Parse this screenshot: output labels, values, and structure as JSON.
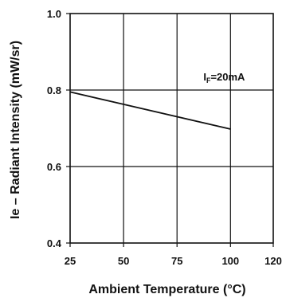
{
  "chart_data": {
    "type": "line",
    "title": "",
    "xlabel": "Ambient Temperature (°C)",
    "ylabel": "Ie – Radiant Intensity (mW/sr)",
    "xlim": [
      25,
      120
    ],
    "ylim": [
      0.4,
      1.0
    ],
    "x_ticks": [
      25,
      50,
      75,
      100,
      120
    ],
    "x_tick_labels": [
      "25",
      "50",
      "75",
      "100",
      "120"
    ],
    "y_ticks": [
      0.4,
      0.6,
      0.8,
      1.0
    ],
    "y_tick_labels": [
      "0.4",
      "0.6",
      "0.8",
      "1.0"
    ],
    "grid": true,
    "annotation": {
      "main": "I",
      "sub": "F",
      "rest": "=20mA",
      "x": 100,
      "y": 0.835
    },
    "series": [
      {
        "x": [
          25,
          100
        ],
        "y": [
          0.795,
          0.698
        ]
      }
    ],
    "colors": {
      "line": "#111111",
      "grid": "#111111",
      "text": "#111111"
    }
  }
}
